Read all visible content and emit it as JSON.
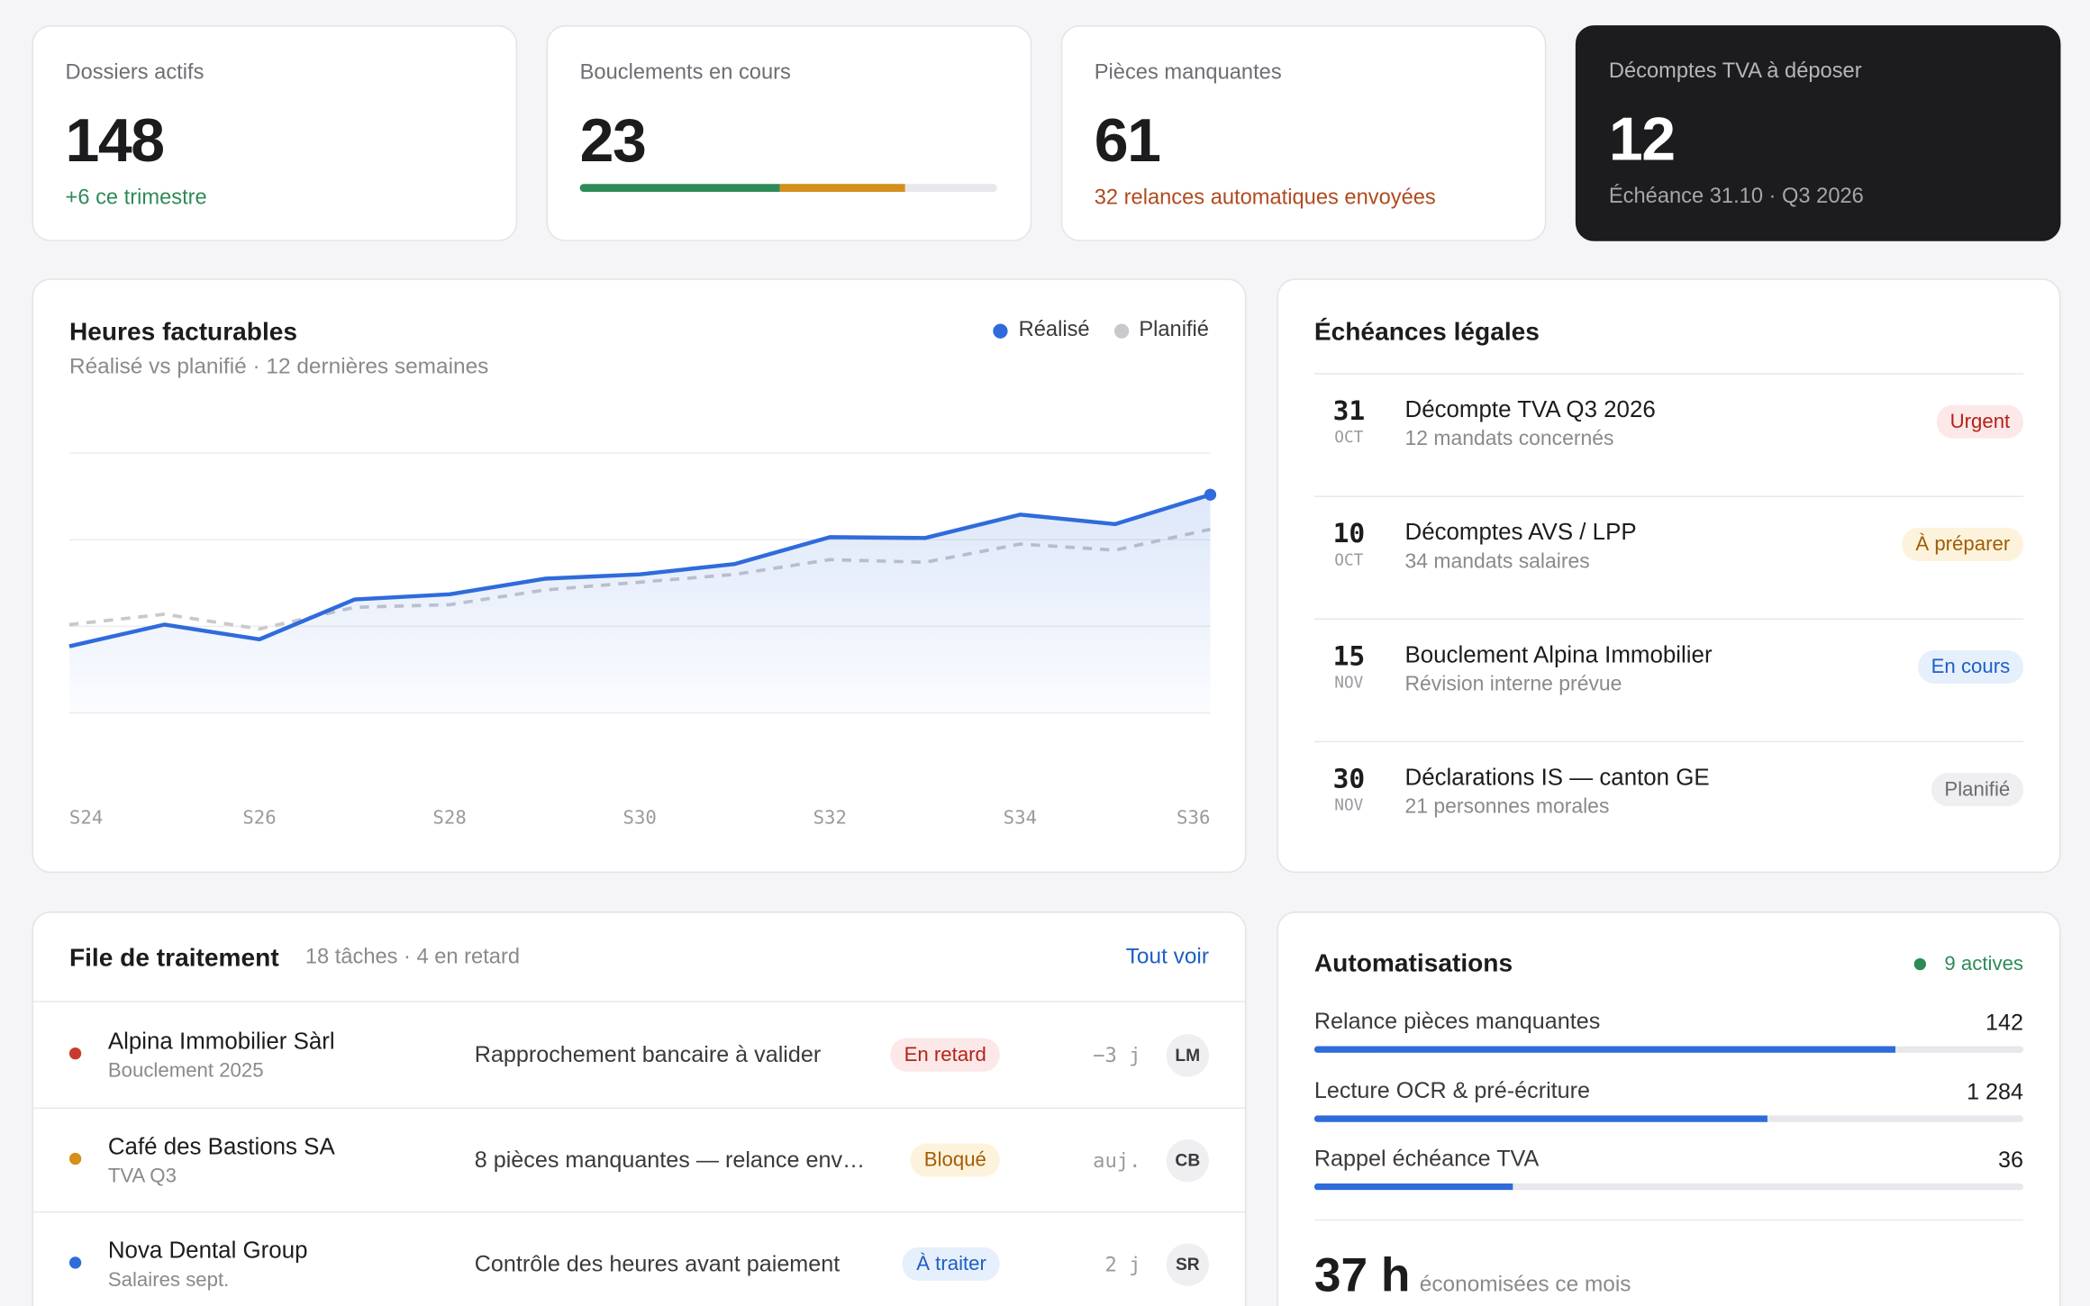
{
  "kpis": [
    {
      "label": "Dossiers actifs",
      "value": "148",
      "note": "+6 ce trimestre"
    },
    {
      "label": "Bouclements en cours",
      "value": "23",
      "progress": [
        {
          "value": 48,
          "color": "#2e8b57"
        },
        {
          "value": 30,
          "color": "#d4901a"
        }
      ]
    },
    {
      "label": "Pièces manquantes",
      "value": "61",
      "note": "32 relances automatiques envoyées"
    },
    {
      "label": "Décomptes TVA à déposer",
      "value": "12",
      "note": "Échéance 31.10 · Q3 2026"
    }
  ],
  "chart_data": {
    "type": "line",
    "title": "Heures facturables",
    "subtitle": "Réalisé vs planifié · 12 dernières semaines",
    "categories": [
      "S24",
      null,
      "S26",
      null,
      "S28",
      null,
      "S30",
      null,
      "S32",
      null,
      "S34",
      null,
      "S36"
    ],
    "series": [
      {
        "name": "Réalisé",
        "color": "#2f6bdb",
        "values": [
          0.77,
          1.02,
          0.85,
          1.31,
          1.37,
          1.55,
          1.6,
          1.72,
          2.03,
          2.02,
          2.29,
          2.18,
          2.52
        ]
      },
      {
        "name": "Planifié",
        "color": "#c8c8cd",
        "values": [
          1.02,
          1.14,
          0.97,
          1.22,
          1.25,
          1.42,
          1.51,
          1.6,
          1.77,
          1.74,
          1.95,
          1.88,
          2.12
        ]
      }
    ],
    "ylim": [
      0,
      3
    ],
    "yticks": [
      0,
      1,
      2,
      3
    ],
    "grid": true,
    "legend": "top-right"
  },
  "deadlines": {
    "title": "Échéances légales",
    "items": [
      {
        "day": "31",
        "month": "OCT",
        "title": "Décompte TVA Q3 2026",
        "sub": "12 mandats concernés",
        "status": "Urgent"
      },
      {
        "day": "10",
        "month": "OCT",
        "title": "Décomptes AVS / LPP",
        "sub": "34 mandats salaires",
        "status": "À préparer"
      },
      {
        "day": "15",
        "month": "NOV",
        "title": "Bouclement Alpina Immobilier",
        "sub": "Révision interne prévue",
        "status": "En cours"
      },
      {
        "day": "30",
        "month": "NOV",
        "title": "Déclarations IS — canton GE",
        "sub": "21 personnes morales",
        "status": "Planifié"
      }
    ]
  },
  "queue": {
    "title": "File de traitement",
    "meta": "18 tâches · 4 en retard",
    "link": "Tout voir",
    "rows": [
      {
        "client": "Alpina Immobilier Sàrl",
        "sub": "Bouclement 2025",
        "task": "Rapprochement bancaire à valider",
        "status": "En retard",
        "delay": "−3 j",
        "owner": "LM"
      },
      {
        "client": "Café des Bastions SA",
        "sub": "TVA Q3",
        "task": "8 pièces manquantes — relance env…",
        "status": "Bloqué",
        "delay": "auj.",
        "owner": "CB"
      },
      {
        "client": "Nova Dental Group",
        "sub": "Salaires sept.",
        "task": "Contrôle des heures avant paiement",
        "status": "À traiter",
        "delay": "2 j",
        "owner": "SR"
      }
    ]
  },
  "automations": {
    "title": "Automatisations",
    "active": "9 actives",
    "items": [
      {
        "name": "Relance pièces manquantes",
        "count": "142",
        "share": 82
      },
      {
        "name": "Lecture OCR & pré-écriture",
        "count": "1 284",
        "share": 64
      },
      {
        "name": "Rappel échéance TVA",
        "count": "36",
        "share": 28
      }
    ],
    "saved": "37 h",
    "saved_note": "économisées ce mois"
  }
}
